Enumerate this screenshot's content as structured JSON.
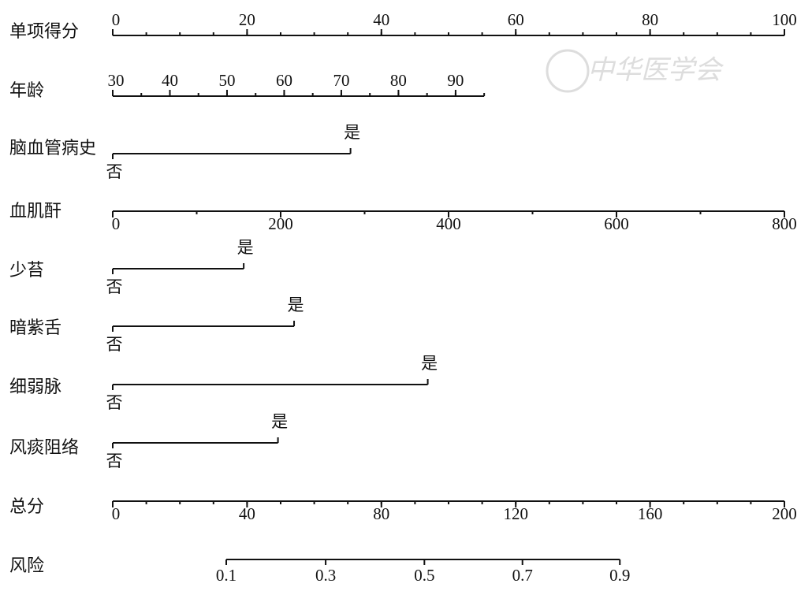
{
  "chart_data": {
    "type": "nomogram",
    "watermark": "中华医学会",
    "points_range": [
      0,
      100
    ],
    "rows": [
      {
        "label": "单项得分",
        "kind": "scale",
        "lim": [
          0,
          100
        ],
        "points": [
          0,
          100
        ],
        "ticks": [
          0,
          20,
          40,
          60,
          80,
          100
        ],
        "minor_ticks": [
          0,
          5,
          10,
          15,
          20,
          25,
          30,
          35,
          40,
          45,
          50,
          55,
          60,
          65,
          70,
          75,
          80,
          85,
          90,
          95,
          100
        ],
        "labels_above": true
      },
      {
        "label": "年龄",
        "kind": "scale",
        "lim": [
          30,
          95
        ],
        "points": [
          0,
          55.3
        ],
        "ticks": [
          30,
          40,
          50,
          60,
          70,
          80,
          90
        ],
        "minor_ticks": [
          30,
          35,
          40,
          45,
          50,
          55,
          60,
          65,
          70,
          75,
          80,
          85,
          90,
          95
        ],
        "labels_above": true
      },
      {
        "label": "脑血管病史",
        "kind": "binary",
        "levels": [
          "否",
          "是"
        ],
        "points": [
          0,
          35.4
        ]
      },
      {
        "label": "血肌酐",
        "kind": "scale",
        "lim": [
          0,
          800
        ],
        "points": [
          0,
          100
        ],
        "ticks": [
          0,
          200,
          400,
          600,
          800
        ],
        "minor_ticks": [
          0,
          100,
          200,
          300,
          400,
          500,
          600,
          700,
          800
        ],
        "labels_above": false
      },
      {
        "label": "少苔",
        "kind": "binary",
        "levels": [
          "否",
          "是"
        ],
        "points": [
          0,
          19.5
        ]
      },
      {
        "label": "暗紫舌",
        "kind": "binary",
        "levels": [
          "否",
          "是"
        ],
        "points": [
          0,
          27.0
        ]
      },
      {
        "label": "细弱脉",
        "kind": "binary",
        "levels": [
          "否",
          "是"
        ],
        "points": [
          0,
          46.9
        ]
      },
      {
        "label": "风痰阻络",
        "kind": "binary",
        "levels": [
          "否",
          "是"
        ],
        "points": [
          0,
          24.6
        ]
      },
      {
        "label": "总分",
        "kind": "scale",
        "lim": [
          0,
          200
        ],
        "points": [
          0,
          100
        ],
        "ticks": [
          0,
          40,
          80,
          120,
          160,
          200
        ],
        "minor_ticks": [
          0,
          10,
          20,
          30,
          40,
          50,
          60,
          70,
          80,
          90,
          100,
          110,
          120,
          130,
          140,
          150,
          160,
          170,
          180,
          190,
          200
        ],
        "labels_above": false
      },
      {
        "label": "风险",
        "kind": "risk",
        "ticks": [
          0.1,
          0.3,
          0.5,
          0.7,
          0.9
        ],
        "positions": [
          16.9,
          31.7,
          46.4,
          61.0,
          75.5
        ]
      }
    ]
  }
}
